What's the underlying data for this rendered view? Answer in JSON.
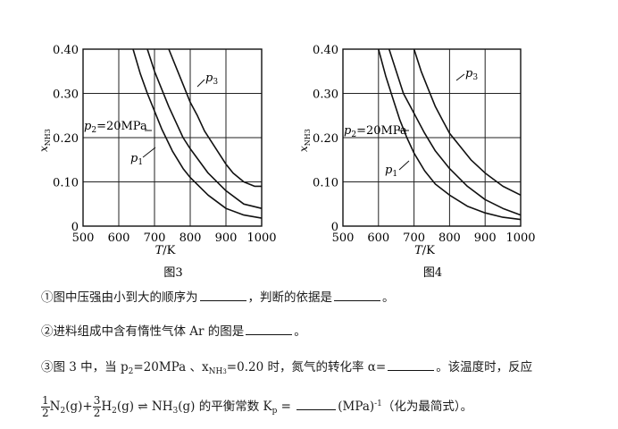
{
  "chart_data": [
    {
      "type": "line",
      "title": "图3",
      "xlabel": "T/K",
      "ylabel": "x_NH3",
      "ylabel_main": "x",
      "ylabel_sub": "NH3",
      "xlim": [
        500,
        1000
      ],
      "ylim": [
        0,
        0.4
      ],
      "xticks": [
        "500",
        "600",
        "700",
        "800",
        "900",
        "1000"
      ],
      "yticks": [
        "0",
        "0.10",
        "0.20",
        "0.30",
        "0.40"
      ],
      "grid": true,
      "series": [
        {
          "name": "p1",
          "x": [
            640,
            660,
            680,
            700,
            720,
            750,
            780,
            800,
            850,
            900,
            950,
            1000
          ],
          "y": [
            0.4,
            0.345,
            0.3,
            0.26,
            0.22,
            0.17,
            0.13,
            0.11,
            0.07,
            0.04,
            0.025,
            0.018
          ]
        },
        {
          "name": "p2=20MPa",
          "x": [
            680,
            700,
            720,
            740,
            760,
            780,
            800,
            850,
            900,
            950,
            1000
          ],
          "y": [
            0.4,
            0.35,
            0.31,
            0.27,
            0.235,
            0.2,
            0.175,
            0.12,
            0.08,
            0.05,
            0.04
          ]
        },
        {
          "name": "p3",
          "x": [
            740,
            760,
            780,
            800,
            820,
            840,
            860,
            880,
            900,
            920,
            950,
            980,
            1000
          ],
          "y": [
            0.4,
            0.36,
            0.32,
            0.28,
            0.25,
            0.215,
            0.19,
            0.165,
            0.14,
            0.12,
            0.1,
            0.09,
            0.09
          ]
        }
      ],
      "labels": {
        "p1": "p",
        "p1_sub": "1",
        "p2": "p",
        "p2_sub": "2",
        "p2_rest": "=20MPa",
        "p3": "p",
        "p3_sub": "3"
      }
    },
    {
      "type": "line",
      "title": "图4",
      "xlabel": "T/K",
      "ylabel": "x_NH3",
      "ylabel_main": "x",
      "ylabel_sub": "NH3",
      "xlim": [
        500,
        1000
      ],
      "ylim": [
        0,
        0.4
      ],
      "xticks": [
        "500",
        "600",
        "700",
        "800",
        "900",
        "1000"
      ],
      "yticks": [
        "0",
        "0.10",
        "0.20",
        "0.30",
        "0.40"
      ],
      "grid": true,
      "series": [
        {
          "name": "p1",
          "x": [
            600,
            620,
            640,
            660,
            680,
            700,
            730,
            760,
            800,
            850,
            900,
            950,
            1000
          ],
          "y": [
            0.4,
            0.34,
            0.29,
            0.24,
            0.2,
            0.165,
            0.125,
            0.095,
            0.07,
            0.045,
            0.03,
            0.02,
            0.015
          ]
        },
        {
          "name": "p2=20MPa",
          "x": [
            630,
            650,
            670,
            700,
            730,
            760,
            800,
            850,
            900,
            950,
            1000
          ],
          "y": [
            0.4,
            0.35,
            0.3,
            0.255,
            0.21,
            0.17,
            0.13,
            0.09,
            0.06,
            0.04,
            0.025
          ]
        },
        {
          "name": "p3",
          "x": [
            700,
            720,
            740,
            760,
            780,
            800,
            830,
            860,
            900,
            950,
            1000
          ],
          "y": [
            0.4,
            0.35,
            0.31,
            0.27,
            0.24,
            0.21,
            0.18,
            0.15,
            0.12,
            0.09,
            0.07
          ]
        }
      ],
      "labels": {
        "p1": "p",
        "p1_sub": "1",
        "p2": "p",
        "p2_sub": "2",
        "p2_rest": "=20MPa",
        "p3": "p",
        "p3_sub": "3"
      }
    }
  ],
  "questions": {
    "q1_a": "①图中压强由小到大的顺序为",
    "q1_b": "，判断的依据是",
    "q1_c": "。",
    "q2_a": "②进料组成中含有惰性气体 Ar 的图是",
    "q2_b": "。",
    "q3_a": "③图 3 中，当 p",
    "q3_sub1": "2",
    "q3_b": "=20MPa 、x",
    "q3_sub2": "NH",
    "q3_sub3": "3",
    "q3_c": "=0.20 时，氮气的转化率 α=",
    "q3_d": "。该温度时，反应",
    "q4_n1": "1",
    "q4_d1": "2",
    "q4_a": "N",
    "q4_sub_a": "2",
    "q4_b": "(g)+",
    "q4_n2": "3",
    "q4_d2": "2",
    "q4_c": "H",
    "q4_sub_c": "2",
    "q4_d": "(g) ⇌ NH",
    "q4_sub_d": "3",
    "q4_e": "(g) 的平衡常数 K",
    "q4_sub_e": "p",
    "q4_f": " = ",
    "q4_g": "(MPa)",
    "q4_sup": "-1",
    "q4_h": "（化为最简式）。"
  }
}
